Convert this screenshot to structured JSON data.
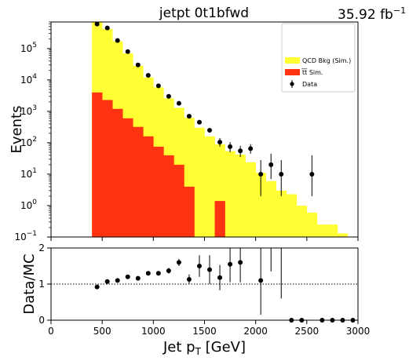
{
  "header": {
    "title": "jetpt  0t1bfwd",
    "lumi": "35.92 fb",
    "lumi_exp": "−1"
  },
  "colors": {
    "qcd": "#ffff33",
    "ttbar": "#ff3311",
    "data": "#000000"
  },
  "chart_data": [
    {
      "type": "bar",
      "subtype": "stacked-histogram",
      "yscale": "log",
      "xlim": [
        0,
        3000
      ],
      "ylim": [
        0.1,
        700000
      ],
      "ylabel": "Events",
      "bin_width": 100,
      "ytick_labels": [
        "10",
        "10",
        "10",
        "10",
        "10",
        "10",
        "10"
      ],
      "ytick_exps": [
        "−1",
        "0",
        "1",
        "2",
        "3",
        "4",
        "5"
      ],
      "ytick_values": [
        0.1,
        1,
        10,
        100,
        1000,
        10000,
        100000
      ],
      "series": [
        {
          "name": "t̅t̅ Sim.",
          "bin_lo": [
            400,
            500,
            600,
            700,
            800,
            900,
            1000,
            1100,
            1200,
            1300,
            1400,
            1500,
            1600,
            1700
          ],
          "values": [
            4000,
            2300,
            1200,
            600,
            320,
            160,
            75,
            40,
            20,
            4,
            0,
            0,
            1.4,
            0
          ]
        },
        {
          "name": "QCD Bkg (Sim.)",
          "bin_lo": [
            400,
            500,
            600,
            700,
            800,
            900,
            1000,
            1100,
            1200,
            1300,
            1400,
            1500,
            1600,
            1700,
            1800,
            1900,
            2000,
            2100,
            2200,
            2300,
            2400,
            2500,
            2600,
            2700,
            2800
          ],
          "values": [
            700000,
            420000,
            170000,
            70000,
            28000,
            12000,
            5800,
            2600,
            1300,
            620,
            300,
            160,
            90,
            54,
            42,
            24,
            11,
            6,
            3,
            2.3,
            1,
            0.6,
            0.25,
            0.25,
            0.13
          ]
        }
      ],
      "data": {
        "name": "Data",
        "x": [
          450,
          550,
          650,
          750,
          850,
          950,
          1050,
          1150,
          1250,
          1350,
          1450,
          1550,
          1650,
          1750,
          1850,
          1950,
          2050,
          2150,
          2250,
          2550
        ],
        "y": [
          600000,
          450000,
          180000,
          80000,
          30000,
          14000,
          6500,
          3000,
          1800,
          700,
          450,
          250,
          105,
          75,
          55,
          65,
          10,
          20,
          10,
          10
        ],
        "err_lo": [
          0,
          0,
          0,
          0,
          0,
          0,
          0,
          0,
          0,
          0,
          0,
          0,
          30,
          25,
          20,
          20,
          8,
          13,
          8,
          8
        ],
        "err_hi": [
          0,
          0,
          0,
          0,
          0,
          0,
          0,
          0,
          0,
          0,
          0,
          0,
          35,
          30,
          25,
          25,
          18,
          25,
          18,
          30
        ]
      },
      "legend": {
        "placement": "top-right",
        "entries": [
          "QCD Bkg (Sim.)",
          "t̅t̅ Sim.",
          "Data"
        ]
      }
    },
    {
      "type": "scatter",
      "subtype": "ratio",
      "xlim": [
        0,
        3000
      ],
      "ylim": [
        0,
        2
      ],
      "xlabel": "Jet p",
      "xlabel_sub": "T",
      "xlabel_unit": " [GeV]",
      "ylabel": "Data/MC",
      "reference_line": 1,
      "xticks": [
        0,
        500,
        1000,
        1500,
        2000,
        2500,
        3000
      ],
      "xtick_labels": [
        "0",
        "500",
        "1000",
        "1500",
        "2000",
        "2500",
        "3000"
      ],
      "yticks": [
        0,
        1,
        2
      ],
      "ytick_labels": [
        "0",
        "1",
        "2"
      ],
      "x": [
        450,
        550,
        650,
        750,
        850,
        950,
        1050,
        1150,
        1250,
        1350,
        1450,
        1550,
        1650,
        1750,
        1850,
        2050,
        2350,
        2450,
        2650,
        2750,
        2850,
        2950
      ],
      "y": [
        0.92,
        1.07,
        1.1,
        1.2,
        1.16,
        1.3,
        1.3,
        1.37,
        1.6,
        1.13,
        1.5,
        1.4,
        1.18,
        1.55,
        1.6,
        1.1,
        0,
        0,
        0,
        0,
        0,
        0
      ],
      "err": [
        0.03,
        0.03,
        0.03,
        0.04,
        0.04,
        0.05,
        0.06,
        0.08,
        0.1,
        0.14,
        0.3,
        0.4,
        0.35,
        0.5,
        0.55,
        0.95,
        0,
        0,
        0,
        0,
        0,
        0
      ],
      "extra_errbars": [
        {
          "x": 2150,
          "y_lo": 1.35,
          "y_hi": 2.0
        },
        {
          "x": 2250,
          "y_lo": 0.6,
          "y_hi": 2.0
        }
      ]
    }
  ]
}
